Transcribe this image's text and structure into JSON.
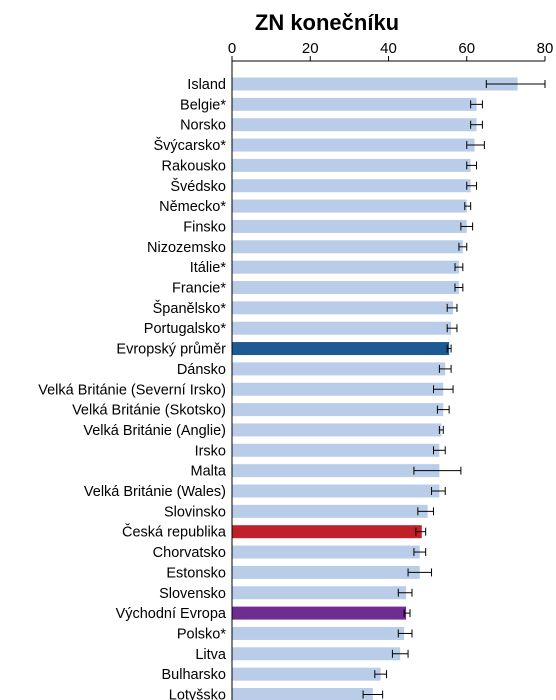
{
  "chart_data": {
    "type": "bar",
    "orientation": "horizontal",
    "title": "ZN konečníku",
    "xlabel": "",
    "ylabel": "",
    "xlim": [
      0,
      80
    ],
    "x_ticks": [
      "0",
      "20",
      "40",
      "60",
      "80"
    ],
    "x_axis_position": "top",
    "grid": false,
    "legend": "none",
    "error_bars": true,
    "colors": {
      "default": "#b9cde9",
      "european_average": "#1d5a93",
      "czech_republic": "#c0202a",
      "eastern_europe": "#6f2d91",
      "error_bar": "#000000",
      "axis": "#000000"
    },
    "categories": [
      "Island",
      "Belgie*",
      "Norsko",
      "Švýcarsko*",
      "Rakousko",
      "Švédsko",
      "Německo*",
      "Finsko",
      "Nizozemsko",
      "Itálie*",
      "Francie*",
      "Španělsko*",
      "Portugalsko*",
      "Evropský průměr",
      "Dánsko",
      "Velká Británie (Severní Irsko)",
      "Velká Británie (Skotsko)",
      "Velká Británie (Anglie)",
      "Irsko",
      "Malta",
      "Velká Británie (Wales)",
      "Slovinsko",
      "Česká republika",
      "Chorvatsko",
      "Estonsko",
      "Slovensko",
      "Východní Evropa",
      "Polsko*",
      "Litva",
      "Bulharsko",
      "Lotyšsko"
    ],
    "values": [
      73,
      62.5,
      62.5,
      62,
      61,
      61,
      60,
      60,
      59,
      58,
      58,
      56.5,
      56,
      55.5,
      54.5,
      54,
      54,
      53.5,
      53,
      53,
      53,
      50,
      48.5,
      48,
      48,
      44.5,
      44.5,
      44,
      43,
      38,
      36
    ],
    "error_low": [
      65,
      61,
      61,
      60,
      60,
      60,
      59.5,
      58.5,
      58,
      57,
      57,
      55,
      55,
      55,
      53,
      51.5,
      52.5,
      53,
      51.5,
      46.5,
      51,
      47.5,
      47,
      46.5,
      45,
      42.5,
      44,
      42.5,
      41,
      36.5,
      33.5
    ],
    "error_high": [
      80,
      64,
      64,
      64.5,
      62.5,
      62.5,
      61,
      61.5,
      60,
      59,
      59,
      57.5,
      57.5,
      56,
      56,
      56.5,
      55.5,
      54,
      54.5,
      58.5,
      54.5,
      51.5,
      49.5,
      49.5,
      51,
      46,
      45.5,
      46,
      45,
      39.5,
      38.5
    ],
    "highlight": {
      "Evropský průměr": "european_average",
      "Česká republika": "czech_republic",
      "Východní Evropa": "eastern_europe"
    }
  }
}
